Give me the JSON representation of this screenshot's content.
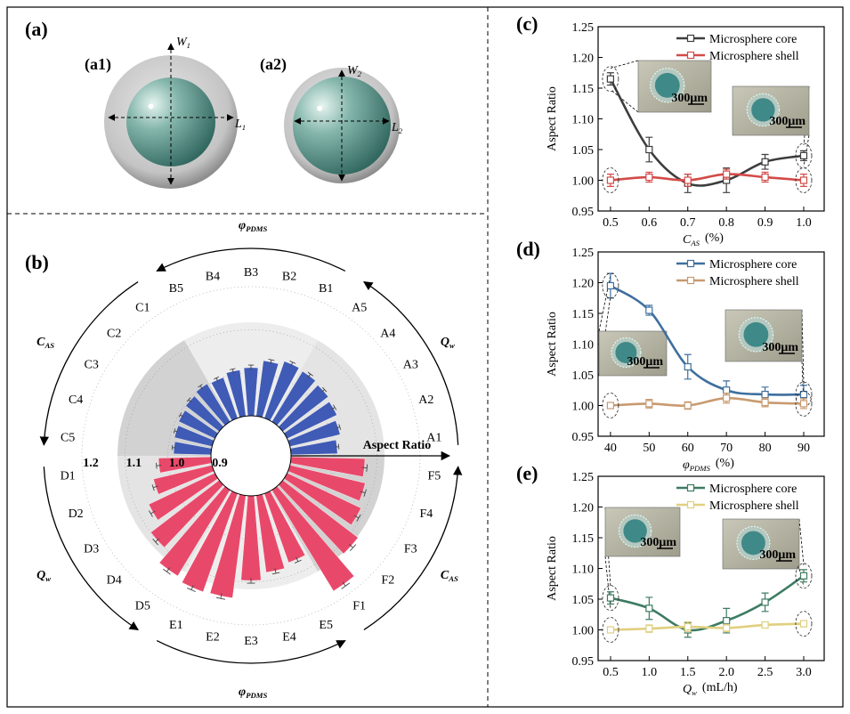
{
  "panel_a": {
    "label": "(a)",
    "items": [
      {
        "label": "(a1)",
        "width": {
          "symbol": "W",
          "subscript": "1"
        },
        "length": {
          "symbol": "L",
          "subscript": "1"
        }
      },
      {
        "label": "(a2)",
        "width": {
          "symbol": "W",
          "subscript": "2"
        },
        "length": {
          "symbol": "L",
          "subscript": "2"
        }
      }
    ]
  },
  "chart_data": [
    {
      "type": "radial_bar",
      "panel_label": "(b)",
      "axis_label": "Aspect Ratio",
      "categories": [
        "A1",
        "A2",
        "A3",
        "A4",
        "A5",
        "B1",
        "B2",
        "B3",
        "B4",
        "B5",
        "C1",
        "C2",
        "C3",
        "C4",
        "C5",
        "D1",
        "D2",
        "D3",
        "D4",
        "D5",
        "E1",
        "E2",
        "E3",
        "E4",
        "E5",
        "F1",
        "F2",
        "F3",
        "F4",
        "F5"
      ],
      "series": [
        {
          "color": "#3f5bb5",
          "values": [
            1.008,
            1.02,
            1.028,
            1.033,
            1.037,
            1.04,
            1.03,
            1.012,
            1.008,
            1.0,
            1.003,
            0.998,
            0.993,
            0.99,
            0.987,
            null,
            null,
            null,
            null,
            null,
            null,
            null,
            null,
            null,
            null,
            null,
            null,
            null,
            null,
            null
          ],
          "errors": [
            0.004,
            0.004,
            0.004,
            0.004,
            0.005,
            0.005,
            0.005,
            0.006,
            0.005,
            0.005,
            0.005,
            0.004,
            0.004,
            0.004,
            0.004,
            null,
            null,
            null,
            null,
            null,
            null,
            null,
            null,
            null,
            null,
            null,
            null,
            null,
            null,
            null
          ]
        },
        {
          "color": "#e8496a",
          "values": [
            null,
            null,
            null,
            null,
            null,
            null,
            null,
            null,
            null,
            null,
            null,
            null,
            null,
            null,
            null,
            1.022,
            1.04,
            1.07,
            1.1,
            1.134,
            1.142,
            1.14,
            1.097,
            1.08,
            1.07,
            1.175,
            1.12,
            1.09,
            1.08,
            1.072
          ],
          "errors": [
            null,
            null,
            null,
            null,
            null,
            null,
            null,
            null,
            null,
            null,
            null,
            null,
            null,
            null,
            null,
            0.006,
            0.006,
            0.006,
            0.006,
            0.006,
            0.006,
            0.006,
            0.006,
            0.006,
            0.006,
            0.006,
            0.006,
            0.006,
            0.006,
            0.006
          ]
        }
      ],
      "rlim": [
        0.9,
        1.2
      ],
      "rticks": [
        0.9,
        {
          "value": 1,
          "label": "1.0"
        },
        1.1,
        1.2
      ],
      "grid": true,
      "groups": [
        {
          "symbol": "Q",
          "subscript": "w"
        },
        {
          "symbol": "φ",
          "subscript": "PDMS"
        },
        {
          "symbol": "C",
          "subscript": "AS"
        },
        {
          "symbol": "Q",
          "subscript": "w"
        },
        {
          "symbol": "φ",
          "subscript": "PDMS"
        },
        {
          "symbol": "C",
          "subscript": "AS"
        }
      ],
      "sector_colors": [
        "#e4e4e4",
        "#ededed",
        "#d2d2d2",
        "#e4e4e4",
        "#ededed",
        "#d2d2d2"
      ]
    },
    {
      "type": "line",
      "panel_label": "(c)",
      "ylabel": "Aspect Ratio",
      "xlabel": {
        "symbol": "C",
        "subscript": "AS",
        "unit": "(%)"
      },
      "x": [
        0.5,
        0.6,
        0.7,
        0.8,
        0.9,
        1.0
      ],
      "xlim": [
        0.468,
        1.053
      ],
      "xticks": [
        0.5,
        0.6,
        0.7,
        0.8,
        0.9,
        {
          "value": 1,
          "label": "1.0"
        }
      ],
      "ylim": [
        0.95,
        1.25
      ],
      "yticks": [
        0.95,
        {
          "value": 1,
          "label": "1.00"
        },
        1.05,
        {
          "value": 1.1,
          "label": "1.10"
        },
        1.15,
        {
          "value": 1.2,
          "label": "1.20"
        },
        1.25
      ],
      "legend": "upper right",
      "series": [
        {
          "name": "Microsphere core",
          "color": "#3d3d3d",
          "values": [
            1.165,
            1.05,
            0.995,
            1.0,
            1.03,
            1.04
          ],
          "errors": [
            0.01,
            0.02,
            0.015,
            0.02,
            0.012,
            0.008
          ]
        },
        {
          "name": "Microsphere shell",
          "color": "#d24b48",
          "values": [
            1.0,
            1.005,
            1.0,
            1.01,
            1.005,
            1.0
          ],
          "errors": [
            0.01,
            0.008,
            0.01,
            0.008,
            0.008,
            0.01
          ]
        }
      ],
      "insets": [
        {
          "scale": "300μm"
        },
        {
          "scale": "300μm"
        }
      ]
    },
    {
      "type": "line",
      "panel_label": "(d)",
      "ylabel": "Aspect Ratio",
      "xlabel": {
        "symbol": "φ",
        "subscript": "PDMS",
        "unit": "(%)"
      },
      "x": [
        40,
        50,
        60,
        70,
        80,
        90
      ],
      "xlim": [
        36.8,
        95.3
      ],
      "xticks": [
        40,
        50,
        60,
        70,
        80,
        90
      ],
      "ylim": [
        0.95,
        1.25
      ],
      "yticks": [
        0.95,
        {
          "value": 1,
          "label": "1.00"
        },
        1.05,
        {
          "value": 1.1,
          "label": "1.10"
        },
        1.15,
        {
          "value": 1.2,
          "label": "1.20"
        },
        1.25
      ],
      "legend": "upper right",
      "series": [
        {
          "name": "Microsphere core",
          "color": "#3f6f9e",
          "values": [
            1.195,
            1.155,
            1.063,
            1.025,
            1.018,
            1.018
          ],
          "errors": [
            0.02,
            0.008,
            0.02,
            0.015,
            0.012,
            0.015
          ]
        },
        {
          "name": "Microsphere shell",
          "color": "#c89a70",
          "values": [
            1.0,
            1.003,
            1.0,
            1.012,
            1.005,
            1.003
          ],
          "errors": [
            0.005,
            0.007,
            0.006,
            0.008,
            0.007,
            0.008
          ]
        }
      ],
      "insets": [
        {
          "scale": "300μm"
        },
        {
          "scale": "300μm"
        }
      ]
    },
    {
      "type": "line",
      "panel_label": "(e)",
      "ylabel": "Aspect Ratio",
      "xlabel": {
        "symbol": "Q",
        "subscript": "w",
        "unit": "(mL/h)"
      },
      "x": [
        0.5,
        1.0,
        1.5,
        2.0,
        2.5,
        3.0
      ],
      "xlim": [
        0.339,
        3.265
      ],
      "xticks": [
        0.5,
        {
          "value": 1,
          "label": "1.0"
        },
        1.5,
        {
          "value": 2,
          "label": "2.0"
        },
        2.5,
        {
          "value": 3,
          "label": "3.0"
        }
      ],
      "ylim": [
        0.95,
        1.25
      ],
      "yticks": [
        0.95,
        {
          "value": 1,
          "label": "1.00"
        },
        1.05,
        {
          "value": 1.1,
          "label": "1.10"
        },
        1.15,
        {
          "value": 1.2,
          "label": "1.20"
        },
        1.25
      ],
      "legend": "upper right",
      "series": [
        {
          "name": "Microsphere core",
          "color": "#3d7b62",
          "values": [
            1.052,
            1.035,
            1.0,
            1.015,
            1.045,
            1.088
          ],
          "errors": [
            0.01,
            0.018,
            0.012,
            0.02,
            0.015,
            0.01
          ]
        },
        {
          "name": "Microsphere shell",
          "color": "#e0cf7f",
          "values": [
            1.0,
            1.002,
            1.005,
            1.003,
            1.008,
            1.01
          ],
          "errors": [
            0.005,
            0.006,
            0.008,
            0.006,
            0.004,
            0.005
          ]
        }
      ],
      "insets": [
        {
          "scale": "300μm"
        },
        {
          "scale": "300μm"
        }
      ]
    }
  ]
}
